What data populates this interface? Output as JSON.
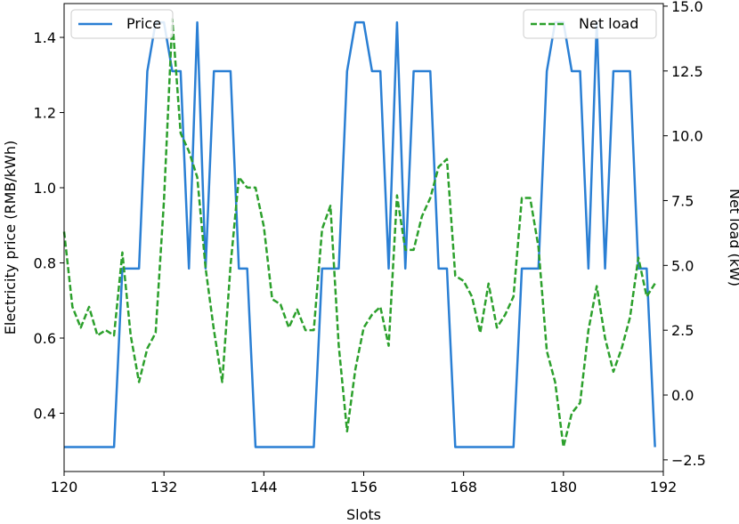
{
  "chart_data": {
    "type": "line",
    "title": "",
    "xlabel": "Slots",
    "ylabel_left": "Electricity price (RMB/kWh)",
    "ylabel_right": "Net load (kW)",
    "xlim": [
      120,
      192
    ],
    "ylim_left": [
      0.245,
      1.49
    ],
    "ylim_right": [
      -2.95,
      15.1
    ],
    "x_ticks": [
      120,
      132,
      144,
      156,
      168,
      180,
      192
    ],
    "y_left_ticks": [
      0.4,
      0.6,
      0.8,
      1.0,
      1.2,
      1.4
    ],
    "y_left_tick_labels": [
      "0.4",
      "0.6",
      "0.8",
      "1.0",
      "1.2",
      "1.4"
    ],
    "y_right_ticks": [
      -2.5,
      0.0,
      2.5,
      5.0,
      7.5,
      10.0,
      12.5,
      15.0
    ],
    "y_right_tick_labels": [
      "−2.5",
      "0.0",
      "2.5",
      "5.0",
      "7.5",
      "10.0",
      "12.5",
      "15.0"
    ],
    "grid": false,
    "series": [
      {
        "name": "Price",
        "axis": "left",
        "color": "#2a7fd4",
        "style": "solid",
        "x": [
          120,
          121,
          122,
          123,
          124,
          125,
          126,
          127,
          128,
          129,
          130,
          131,
          132,
          133,
          134,
          135,
          136,
          137,
          138,
          139,
          140,
          141,
          142,
          143,
          144,
          145,
          146,
          147,
          148,
          149,
          150,
          151,
          152,
          153,
          154,
          155,
          156,
          157,
          158,
          159,
          160,
          161,
          162,
          163,
          164,
          165,
          166,
          167,
          168,
          169,
          170,
          171,
          172,
          173,
          174,
          175,
          176,
          177,
          178,
          179,
          180,
          181,
          182,
          183,
          184,
          185,
          186,
          187,
          188,
          189,
          190,
          191
        ],
        "values": [
          0.31,
          0.31,
          0.31,
          0.31,
          0.31,
          0.31,
          0.31,
          0.785,
          0.785,
          0.785,
          1.31,
          1.44,
          1.44,
          1.31,
          1.31,
          0.785,
          1.44,
          0.785,
          1.31,
          1.31,
          1.31,
          0.785,
          0.785,
          0.31,
          0.31,
          0.31,
          0.31,
          0.31,
          0.31,
          0.31,
          0.31,
          0.785,
          0.785,
          0.785,
          1.31,
          1.44,
          1.44,
          1.31,
          1.31,
          0.785,
          1.44,
          0.785,
          1.31,
          1.31,
          1.31,
          0.785,
          0.785,
          0.31,
          0.31,
          0.31,
          0.31,
          0.31,
          0.31,
          0.31,
          0.31,
          0.785,
          0.785,
          0.785,
          1.31,
          1.44,
          1.44,
          1.31,
          1.31,
          0.785,
          1.44,
          0.785,
          1.31,
          1.31,
          1.31,
          0.785,
          0.785,
          0.31
        ]
      },
      {
        "name": "Net load",
        "axis": "right",
        "color": "#2ca02c",
        "style": "dashed",
        "x": [
          120,
          121,
          122,
          123,
          124,
          125,
          126,
          127,
          128,
          129,
          130,
          131,
          132,
          133,
          134,
          135,
          136,
          137,
          138,
          139,
          140,
          141,
          142,
          143,
          144,
          145,
          146,
          147,
          148,
          149,
          150,
          151,
          152,
          153,
          154,
          155,
          156,
          157,
          158,
          159,
          160,
          161,
          162,
          163,
          164,
          165,
          166,
          167,
          168,
          169,
          170,
          171,
          172,
          173,
          174,
          175,
          176,
          177,
          178,
          179,
          180,
          181,
          182,
          183,
          184,
          185,
          186,
          187,
          188,
          189,
          190,
          191
        ],
        "values": [
          6.3,
          3.4,
          2.6,
          3.4,
          2.3,
          2.5,
          2.3,
          5.5,
          2.3,
          0.5,
          1.8,
          2.4,
          7.5,
          14.5,
          10.1,
          9.4,
          8.4,
          4.9,
          2.5,
          0.5,
          5.0,
          8.4,
          8.0,
          8.0,
          6.5,
          3.7,
          3.5,
          2.6,
          3.3,
          2.5,
          2.5,
          6.4,
          7.3,
          1.9,
          -1.4,
          1.0,
          2.6,
          3.1,
          3.4,
          1.9,
          7.7,
          5.6,
          5.6,
          6.9,
          7.6,
          8.8,
          9.1,
          4.6,
          4.4,
          3.8,
          2.4,
          4.3,
          2.6,
          3.1,
          3.8,
          7.6,
          7.6,
          5.7,
          1.7,
          0.5,
          -2.0,
          -0.7,
          -0.3,
          2.5,
          4.2,
          2.2,
          0.9,
          1.8,
          3.0,
          5.3,
          3.8,
          4.3
        ]
      }
    ],
    "legends": [
      {
        "position": "top-left",
        "entries": [
          "Price"
        ]
      },
      {
        "position": "top-right",
        "entries": [
          "Net load"
        ]
      }
    ]
  }
}
